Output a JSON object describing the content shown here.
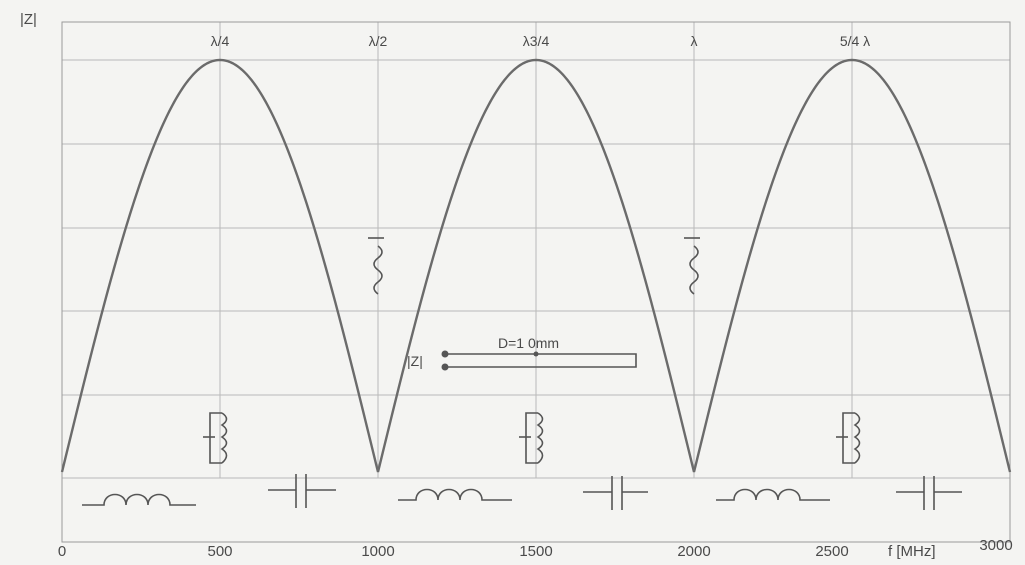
{
  "chart_data": {
    "type": "line",
    "ylabel": "|Z|",
    "xlabel": "f [MHz]",
    "xlim": [
      0,
      3000
    ],
    "ylim": [
      0,
      1
    ],
    "grid": true,
    "x_ticks": [
      "0",
      "500",
      "1000",
      "1500",
      "2000",
      "2500",
      "3000"
    ],
    "wavelength_labels": [
      {
        "x": 500,
        "label": "λ/4"
      },
      {
        "x": 1000,
        "label": "λ/2"
      },
      {
        "x": 1500,
        "label": "λ3/4"
      },
      {
        "x": 2000,
        "label": "λ"
      },
      {
        "x": 2500,
        "label": "5/4 λ"
      }
    ],
    "series": [
      {
        "x": [
          0,
          100,
          200,
          300,
          400,
          500,
          600,
          700,
          800,
          900,
          1000,
          1100,
          1200,
          1300,
          1400,
          1500,
          1600,
          1700,
          1800,
          1900,
          2000,
          2100,
          2200,
          2300,
          2400,
          2500,
          2600,
          2700,
          2800,
          2900,
          3000
        ],
        "values": [
          0,
          0.31,
          0.59,
          0.81,
          0.95,
          1,
          0.95,
          0.81,
          0.59,
          0.31,
          0,
          0.31,
          0.59,
          0.81,
          0.95,
          1,
          0.95,
          0.81,
          0.59,
          0.31,
          0,
          0.31,
          0.59,
          0.81,
          0.95,
          1,
          0.95,
          0.81,
          0.59,
          0.31,
          0
        ]
      }
    ],
    "annotations": {
      "line_label": "D=1 0mm",
      "impedance_label": "|Z|"
    }
  }
}
